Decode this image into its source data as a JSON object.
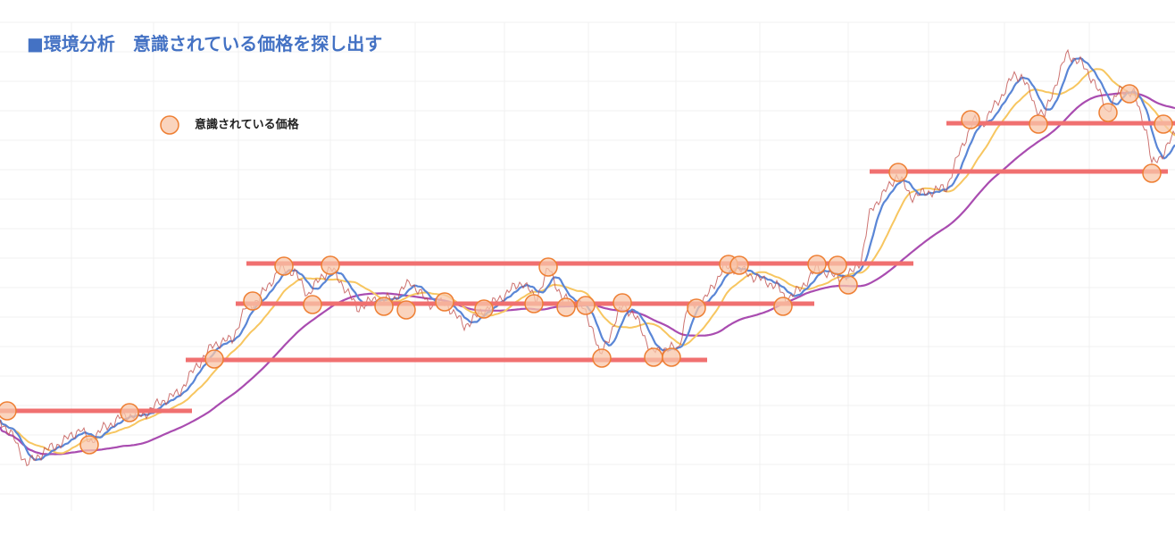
{
  "chart_data": {
    "type": "line",
    "title": "■環境分析　意識されている価格を探し出す",
    "legend": [
      "意識されている価格"
    ]
  }
}
